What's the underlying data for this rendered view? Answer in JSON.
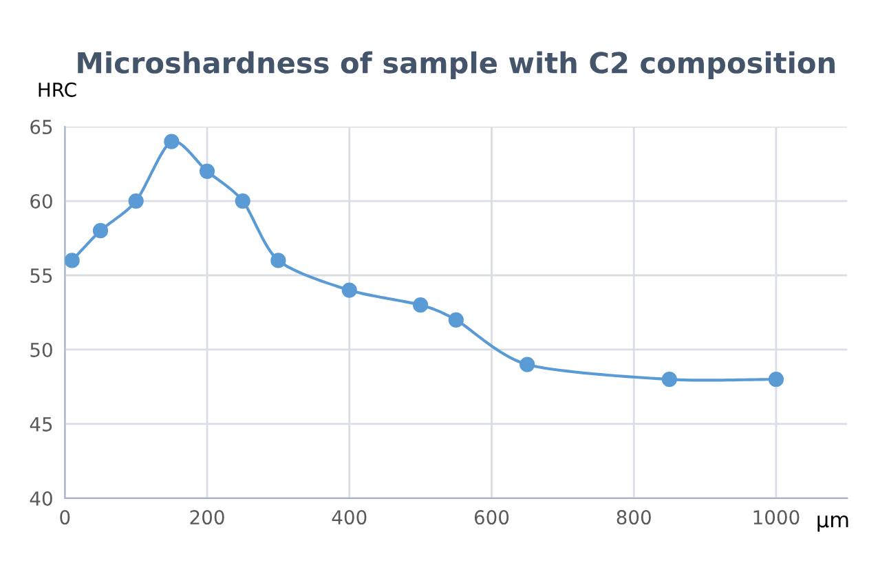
{
  "chart_data": {
    "type": "line",
    "title": "Microshardness of sample with C2 composition",
    "xlabel": "µm",
    "ylabel": "HRC",
    "x": [
      10,
      50,
      100,
      150,
      200,
      250,
      300,
      400,
      500,
      550,
      650,
      850,
      1000
    ],
    "series": [
      {
        "color": "#5b9bd5",
        "values": [
          56,
          58,
          60,
          64,
          62,
          60,
          56,
          54,
          53,
          52,
          49,
          48,
          48
        ]
      }
    ],
    "xlim": [
      0,
      1100
    ],
    "xticks": [
      0,
      200,
      400,
      600,
      800,
      1000
    ],
    "ylim": [
      40,
      65
    ],
    "yticks": [
      40,
      45,
      50,
      55,
      60,
      65
    ],
    "grid": true,
    "marker": "circle",
    "line_style": "solid"
  }
}
